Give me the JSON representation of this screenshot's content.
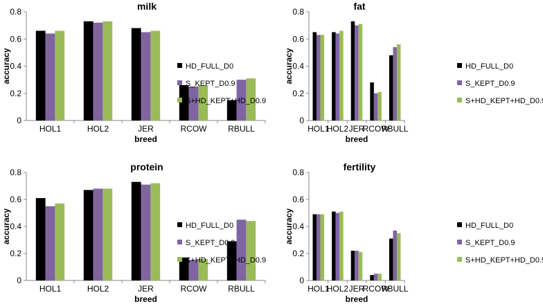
{
  "figure": {
    "legend": [
      "HD_FULL_D0",
      "S_KEPT_D0.9",
      "S+HD_KEPT+HD_D0.9"
    ],
    "colors": [
      "#000000",
      "#8064a2",
      "#9bbb59"
    ]
  },
  "chart_data": [
    {
      "type": "bar",
      "title": "milk",
      "xlabel": "breed",
      "ylabel": "accuracy",
      "ylim": [
        0,
        0.8
      ],
      "yticks": [
        "0",
        "0.2",
        "0.4",
        "0.6",
        "0.8"
      ],
      "categories": [
        "HOL1",
        "HOL2",
        "JER",
        "RCOW",
        "RBULL"
      ],
      "legend_position": "right",
      "series": [
        {
          "name": "HD_FULL_D0",
          "values": [
            0.66,
            0.73,
            0.68,
            0.26,
            0.15
          ]
        },
        {
          "name": "S_KEPT_D0.9",
          "values": [
            0.64,
            0.72,
            0.65,
            0.25,
            0.3
          ]
        },
        {
          "name": "S+HD_KEPT+HD_D0.9",
          "values": [
            0.66,
            0.73,
            0.66,
            0.26,
            0.31
          ]
        }
      ]
    },
    {
      "type": "bar",
      "title": "fat",
      "xlabel": "breed",
      "ylabel": "accuracy",
      "ylim": [
        0,
        0.8
      ],
      "yticks": [
        "0",
        "0.2",
        "0.4",
        "0.6",
        "0.8"
      ],
      "categories": [
        "HOL1",
        "HOL2",
        "JER",
        "RCOW",
        "RBULL"
      ],
      "legend_position": "right",
      "series": [
        {
          "name": "HD_FULL_D0",
          "values": [
            0.65,
            0.65,
            0.73,
            0.28,
            0.48
          ]
        },
        {
          "name": "S_KEPT_D0.9",
          "values": [
            0.63,
            0.64,
            0.7,
            0.2,
            0.54
          ]
        },
        {
          "name": "S+HD_KEPT+HD_D0.9",
          "values": [
            0.63,
            0.66,
            0.71,
            0.21,
            0.56
          ]
        }
      ]
    },
    {
      "type": "bar",
      "title": "protein",
      "xlabel": "breed",
      "ylabel": "accuracy",
      "ylim": [
        0,
        0.8
      ],
      "yticks": [
        "0",
        "0.2",
        "0.4",
        "0.6",
        "0.8"
      ],
      "categories": [
        "HOL1",
        "HOL2",
        "JER",
        "RCOW",
        "RBULL"
      ],
      "legend_position": "right",
      "series": [
        {
          "name": "HD_FULL_D0",
          "values": [
            0.61,
            0.67,
            0.73,
            0.17,
            0.29
          ]
        },
        {
          "name": "S_KEPT_D0.9",
          "values": [
            0.55,
            0.68,
            0.71,
            0.15,
            0.45
          ]
        },
        {
          "name": "S+HD_KEPT+HD_D0.9",
          "values": [
            0.57,
            0.68,
            0.72,
            0.16,
            0.44
          ]
        }
      ]
    },
    {
      "type": "bar",
      "title": "fertility",
      "xlabel": "breed",
      "ylabel": "accuracy",
      "ylim": [
        0,
        0.8
      ],
      "yticks": [
        "0",
        "0.2",
        "0.4",
        "0.6",
        "0.8"
      ],
      "categories": [
        "HOL1",
        "HOL2",
        "JER",
        "RCOW",
        "RBULL"
      ],
      "legend_position": "right",
      "series": [
        {
          "name": "HD_FULL_D0",
          "values": [
            0.49,
            0.51,
            0.22,
            0.04,
            0.31
          ]
        },
        {
          "name": "S_KEPT_D0.9",
          "values": [
            0.49,
            0.5,
            0.22,
            0.05,
            0.37
          ]
        },
        {
          "name": "S+HD_KEPT+HD_D0.9",
          "values": [
            0.49,
            0.51,
            0.21,
            0.05,
            0.35
          ]
        }
      ]
    }
  ]
}
